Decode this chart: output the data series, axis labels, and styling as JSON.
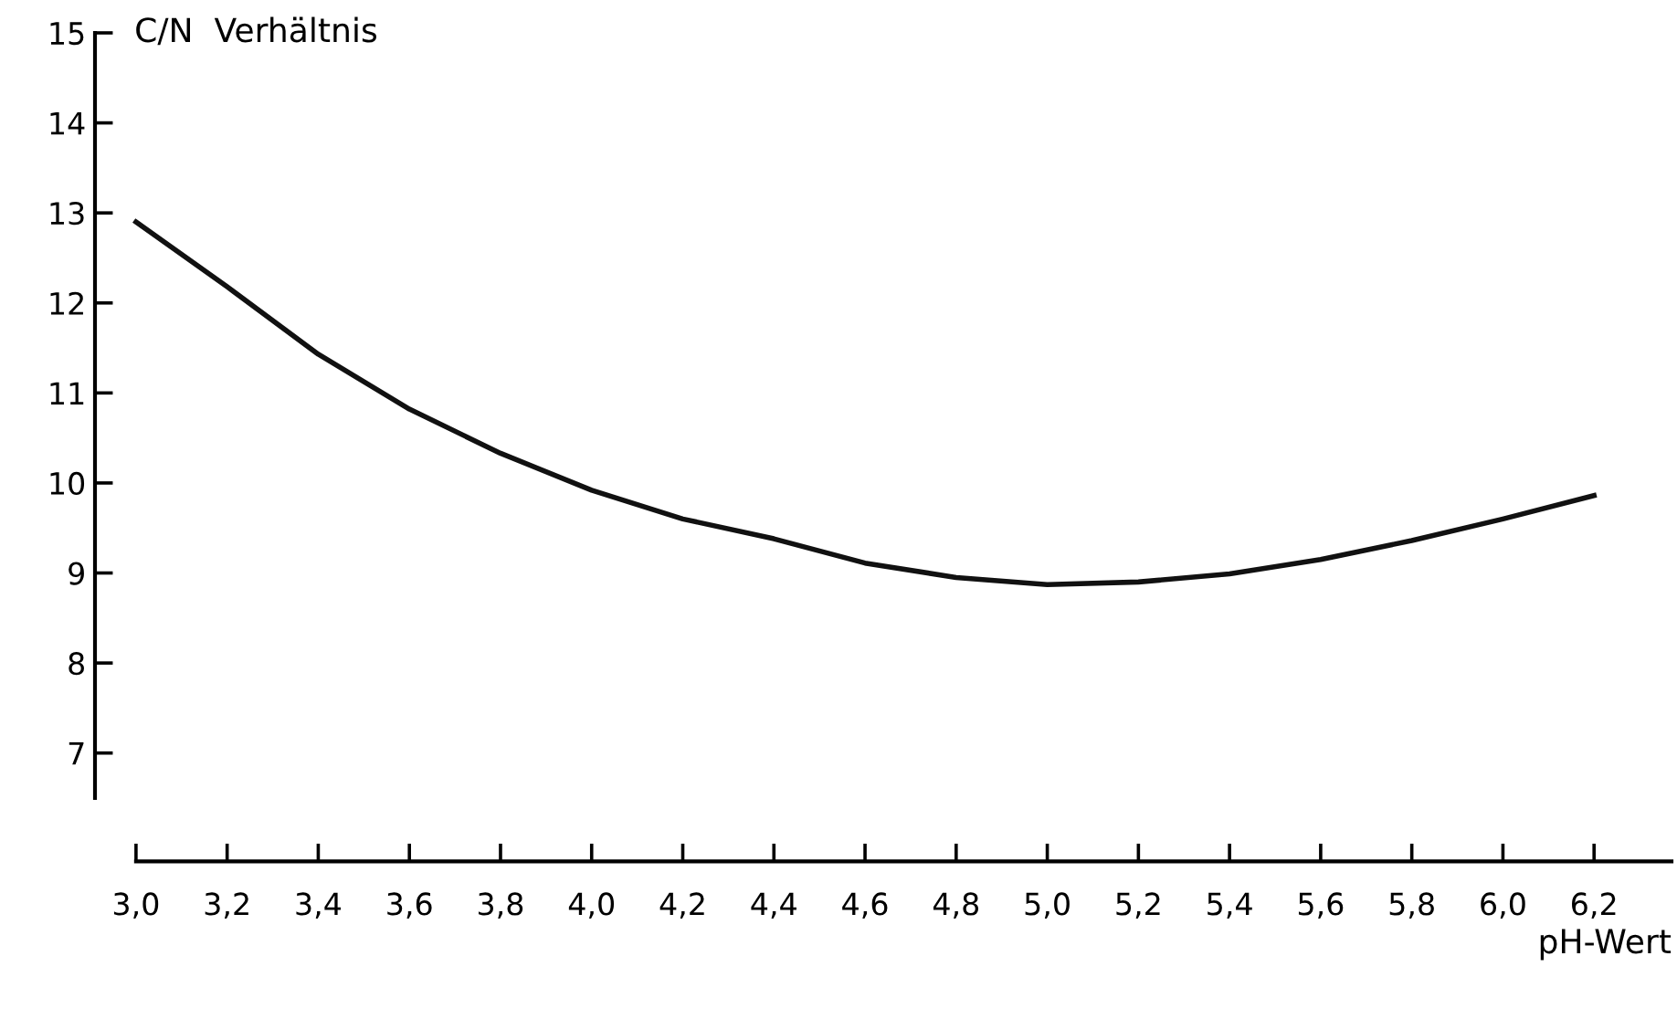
{
  "chart_data": {
    "type": "line",
    "ylabel": "C/N  Verhältnis",
    "xlabel": "pH-Wert",
    "x": [
      3.0,
      3.2,
      3.4,
      3.6,
      3.8,
      4.0,
      4.2,
      4.4,
      4.6,
      4.8,
      5.0,
      5.2,
      5.4,
      5.6,
      5.8,
      6.0,
      6.2
    ],
    "series": [
      {
        "color": "#111111",
        "values": [
          12.9,
          12.18,
          11.43,
          10.82,
          10.33,
          9.92,
          9.6,
          9.38,
          9.11,
          8.95,
          8.87,
          8.9,
          8.99,
          9.15,
          9.36,
          9.6,
          9.86
        ]
      }
    ],
    "xlim": [
      2.91,
      6.37
    ],
    "ylim": [
      6.5,
      15
    ],
    "xticks": [
      {
        "value": 3.0,
        "label": "3,0"
      },
      {
        "value": 3.2,
        "label": "3,2"
      },
      {
        "value": 3.4,
        "label": "3,4"
      },
      {
        "value": 3.6,
        "label": "3,6"
      },
      {
        "value": 3.8,
        "label": "3,8"
      },
      {
        "value": 4.0,
        "label": "4,0"
      },
      {
        "value": 4.2,
        "label": "4,2"
      },
      {
        "value": 4.4,
        "label": "4,4"
      },
      {
        "value": 4.6,
        "label": "4,6"
      },
      {
        "value": 4.8,
        "label": "4,8"
      },
      {
        "value": 5.0,
        "label": "5,0"
      },
      {
        "value": 5.2,
        "label": "5,2"
      },
      {
        "value": 5.4,
        "label": "5,4"
      },
      {
        "value": 5.6,
        "label": "5,6"
      },
      {
        "value": 5.8,
        "label": "5,8"
      },
      {
        "value": 6.0,
        "label": "6,0"
      },
      {
        "value": 6.2,
        "label": "6,2"
      }
    ],
    "yticks": [
      7,
      8,
      9,
      10,
      11,
      12,
      13,
      14,
      15
    ],
    "grid": false,
    "legend": false,
    "marker": "none",
    "line_style": "solid"
  }
}
